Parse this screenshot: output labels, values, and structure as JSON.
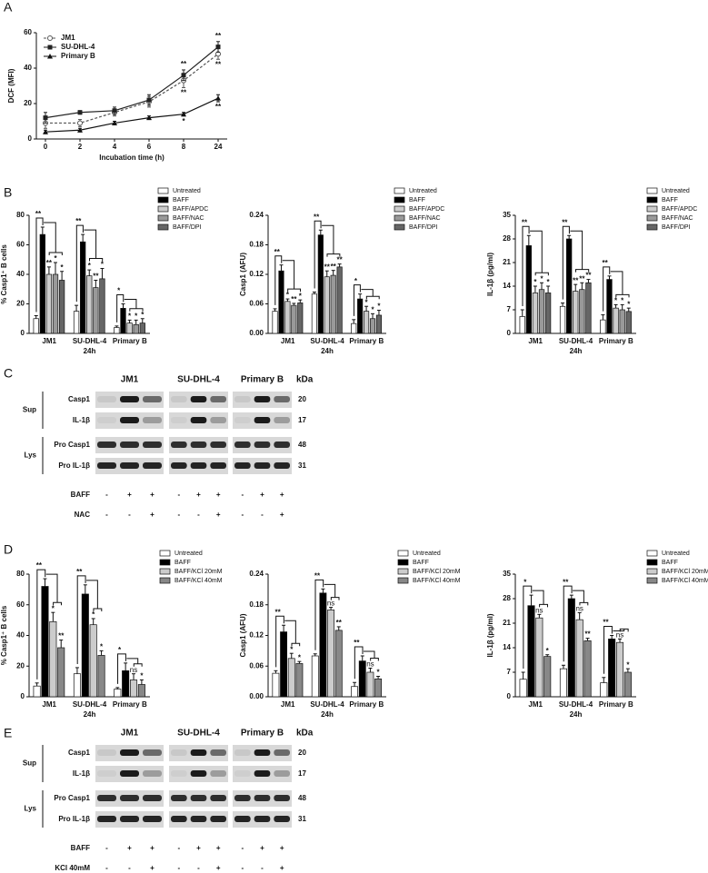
{
  "panel_labels": [
    "A",
    "B",
    "C",
    "D",
    "E"
  ],
  "chart_data": [
    {
      "type": "line",
      "xlabel": "Incubation time (h)",
      "ylabel": "DCF (MFI)",
      "categories": [
        "0",
        "2",
        "4",
        "6",
        "8",
        "24"
      ],
      "ylim": [
        0,
        60
      ],
      "yticks": [
        0,
        20,
        40,
        60
      ],
      "legend": "top-left",
      "series": [
        {
          "name": "JM1",
          "color": "#555555",
          "marker": "circle-open",
          "dash": true,
          "sig_position": "below",
          "values": [
            9,
            9,
            15,
            21,
            33,
            48
          ],
          "errors": [
            3,
            2,
            2,
            3,
            4,
            3
          ],
          "sig": [
            null,
            null,
            null,
            null,
            "**",
            "**"
          ]
        },
        {
          "name": "SU-DHL-4",
          "color": "#222222",
          "marker": "square",
          "dash": false,
          "sig_position": "above",
          "values": [
            12,
            15,
            16,
            22,
            36,
            52
          ],
          "errors": [
            3,
            1,
            2,
            3,
            3,
            3
          ],
          "sig": [
            null,
            null,
            null,
            null,
            "**",
            "**"
          ]
        },
        {
          "name": "Primary B",
          "color": "#111111",
          "marker": "triangle",
          "dash": false,
          "sig_position": "below",
          "values": [
            4,
            5,
            9,
            12,
            14,
            23
          ],
          "errors": [
            1,
            1,
            1,
            1,
            1,
            2
          ],
          "sig": [
            null,
            null,
            null,
            null,
            "*",
            "**"
          ]
        }
      ]
    },
    {
      "type": "bar",
      "ylabel": "% Casp1⁺ B cells",
      "xlabel": "24h",
      "categories": [
        "JM1",
        "SU-DHL-4",
        "Primary B"
      ],
      "ylim": [
        0,
        80
      ],
      "yticks": [
        0,
        20,
        40,
        60,
        80
      ],
      "bracket_labels": [
        "**",
        "**",
        "*"
      ],
      "series": [
        {
          "name": "Untreated",
          "color": "#ffffff",
          "values": [
            10,
            15,
            4
          ],
          "errors": [
            2,
            4,
            1
          ],
          "sig": [
            null,
            null,
            null
          ]
        },
        {
          "name": "BAFF",
          "color": "#000000",
          "values": [
            67,
            62,
            17
          ],
          "errors": [
            5,
            5,
            3
          ],
          "sig": [
            null,
            null,
            null
          ]
        },
        {
          "name": "BAFF/APDC",
          "color": "#cccccc",
          "values": [
            40,
            39,
            7
          ],
          "errors": [
            5,
            4,
            2
          ],
          "sig": [
            "**",
            "*",
            "*"
          ]
        },
        {
          "name": "BAFF/NAC",
          "color": "#999999",
          "values": [
            40,
            31,
            6
          ],
          "errors": [
            8,
            5,
            3
          ],
          "sig": [
            "*",
            "**",
            "*"
          ]
        },
        {
          "name": "BAFF/DPI",
          "color": "#666666",
          "values": [
            36,
            37,
            7
          ],
          "errors": [
            6,
            7,
            3
          ],
          "sig": [
            "*",
            "*",
            "*"
          ]
        }
      ]
    },
    {
      "type": "bar",
      "ylabel": "Casp1 (AFU)",
      "xlabel": "24h",
      "categories": [
        "JM1",
        "SU-DHL-4",
        "Primary B"
      ],
      "ylim": [
        0,
        0.24
      ],
      "yticks": [
        {
          "value": 0,
          "label": "0.00"
        },
        0.06,
        0.12,
        0.18,
        0.24
      ],
      "bracket_labels": [
        "**",
        "**",
        "*"
      ],
      "series": [
        {
          "name": "Untreated",
          "color": "#ffffff",
          "values": [
            0.045,
            0.08,
            0.02
          ],
          "errors": [
            0.005,
            0.004,
            0.008
          ],
          "sig": [
            null,
            null,
            null
          ]
        },
        {
          "name": "BAFF",
          "color": "#000000",
          "values": [
            0.127,
            0.2,
            0.07
          ],
          "errors": [
            0.012,
            0.01,
            0.01
          ],
          "sig": [
            null,
            null,
            null
          ]
        },
        {
          "name": "BAFF/APDC",
          "color": "#cccccc",
          "values": [
            0.065,
            0.115,
            0.045
          ],
          "errors": [
            0.005,
            0.012,
            0.01
          ],
          "sig": [
            "*",
            "**",
            "*"
          ]
        },
        {
          "name": "BAFF/NAC",
          "color": "#999999",
          "values": [
            0.057,
            0.118,
            0.03
          ],
          "errors": [
            0.004,
            0.01,
            0.01
          ],
          "sig": [
            "**",
            "**",
            "*"
          ]
        },
        {
          "name": "BAFF/DPI",
          "color": "#666666",
          "values": [
            0.062,
            0.135,
            0.037
          ],
          "errors": [
            0.006,
            0.006,
            0.01
          ],
          "sig": [
            "*",
            "**",
            "*"
          ]
        }
      ]
    },
    {
      "type": "bar",
      "ylabel": "IL-1β (pg/ml)",
      "xlabel": "24h",
      "categories": [
        "JM1",
        "SU-DHL-4",
        "Primary B"
      ],
      "ylim": [
        0,
        35
      ],
      "yticks": [
        0,
        7,
        14,
        21,
        28,
        35
      ],
      "bracket_labels": [
        "**",
        "**",
        "**"
      ],
      "series": [
        {
          "name": "Untreated",
          "color": "#ffffff",
          "values": [
            5,
            8,
            4
          ],
          "errors": [
            2,
            1,
            1.5
          ],
          "sig": [
            null,
            null,
            null
          ]
        },
        {
          "name": "BAFF",
          "color": "#000000",
          "values": [
            26,
            28,
            16
          ],
          "errors": [
            3,
            1,
            1
          ],
          "sig": [
            null,
            null,
            null
          ]
        },
        {
          "name": "BAFF/APDC",
          "color": "#cccccc",
          "values": [
            12,
            12.5,
            7.5
          ],
          "errors": [
            2,
            2,
            1
          ],
          "sig": [
            "*",
            "**",
            "*"
          ]
        },
        {
          "name": "BAFF/NAC",
          "color": "#999999",
          "values": [
            13,
            13,
            7
          ],
          "errors": [
            2,
            2,
            1.5
          ],
          "sig": [
            "*",
            "**",
            "*"
          ]
        },
        {
          "name": "BAFF/DPI",
          "color": "#666666",
          "values": [
            12,
            15,
            6.5
          ],
          "errors": [
            2,
            1,
            1
          ],
          "sig": [
            "*",
            "**",
            "*"
          ]
        }
      ]
    },
    {
      "type": "bar",
      "ylabel": "% Casp1⁺ B cells",
      "xlabel": "24h",
      "categories": [
        "JM1",
        "SU-DHL-4",
        "Primary B"
      ],
      "ylim": [
        0,
        80
      ],
      "yticks": [
        0,
        20,
        40,
        60,
        80
      ],
      "bracket_labels": [
        "**",
        "**",
        "*"
      ],
      "series": [
        {
          "name": "Untreated",
          "color": "#ffffff",
          "values": [
            7,
            15,
            5
          ],
          "errors": [
            2,
            4,
            1
          ],
          "sig": [
            null,
            null,
            null
          ]
        },
        {
          "name": "BAFF",
          "color": "#000000",
          "values": [
            72,
            67,
            17
          ],
          "errors": [
            5,
            6,
            5
          ],
          "sig": [
            null,
            null,
            null
          ]
        },
        {
          "name": "BAFF/KCl 20mM",
          "color": "#cccccc",
          "values": [
            49,
            47,
            11
          ],
          "errors": [
            6,
            4,
            4
          ],
          "sig": [
            "*",
            "*",
            "ns"
          ]
        },
        {
          "name": "BAFF/KCl 40mM",
          "color": "#888888",
          "values": [
            32,
            27,
            8
          ],
          "errors": [
            5,
            3,
            3
          ],
          "sig": [
            "**",
            "*",
            "*"
          ]
        }
      ]
    },
    {
      "type": "bar",
      "ylabel": "Casp1 (AFU)",
      "xlabel": "24h",
      "categories": [
        "JM1",
        "SU-DHL-4",
        "Primary B"
      ],
      "ylim": [
        0,
        0.24
      ],
      "yticks": [
        {
          "value": 0,
          "label": "0.00"
        },
        0.06,
        0.12,
        0.18,
        0.24
      ],
      "bracket_labels": [
        "**",
        "**",
        "**"
      ],
      "series": [
        {
          "name": "Untreated",
          "color": "#ffffff",
          "values": [
            0.046,
            0.08,
            0.02
          ],
          "errors": [
            0.005,
            0.004,
            0.008
          ],
          "sig": [
            null,
            null,
            null
          ]
        },
        {
          "name": "BAFF",
          "color": "#000000",
          "values": [
            0.127,
            0.203,
            0.07
          ],
          "errors": [
            0.013,
            0.008,
            0.01
          ],
          "sig": [
            null,
            null,
            null
          ]
        },
        {
          "name": "BAFF/KCl 20mM",
          "color": "#cccccc",
          "values": [
            0.075,
            0.17,
            0.048
          ],
          "errors": [
            0.01,
            0.005,
            0.008
          ],
          "sig": [
            "*",
            "ns",
            "ns"
          ]
        },
        {
          "name": "BAFF/KCl 40mM",
          "color": "#888888",
          "values": [
            0.065,
            0.13,
            0.035
          ],
          "errors": [
            0.004,
            0.007,
            0.005
          ],
          "sig": [
            "*",
            "**",
            "*"
          ]
        }
      ]
    },
    {
      "type": "bar",
      "ylabel": "IL-1β (pg/ml)",
      "xlabel": "24h",
      "categories": [
        "JM1",
        "SU-DHL-4",
        "Primary B"
      ],
      "ylim": [
        0,
        35
      ],
      "yticks": [
        0,
        7,
        14,
        21,
        28,
        35
      ],
      "bracket_labels": [
        "*",
        "**",
        "**"
      ],
      "series": [
        {
          "name": "Untreated",
          "color": "#ffffff",
          "values": [
            5,
            8,
            4
          ],
          "errors": [
            2,
            1,
            1.5
          ],
          "sig": [
            null,
            null,
            null
          ]
        },
        {
          "name": "BAFF",
          "color": "#000000",
          "values": [
            26,
            28,
            16.5
          ],
          "errors": [
            3,
            1,
            1
          ],
          "sig": [
            null,
            null,
            null
          ]
        },
        {
          "name": "BAFF/KCl 20mM",
          "color": "#cccccc",
          "values": [
            22.5,
            22,
            15.5
          ],
          "errors": [
            1,
            2,
            1
          ],
          "sig": [
            "ns",
            "ns",
            "ns"
          ]
        },
        {
          "name": "BAFF/KCl 40mM",
          "color": "#888888",
          "values": [
            11.5,
            16,
            7
          ],
          "errors": [
            0.5,
            0.7,
            1
          ],
          "sig": [
            "*",
            "**",
            "*"
          ]
        }
      ]
    }
  ],
  "blots": [
    {
      "columns": [
        "JM1",
        "SU-DHL-4",
        "Primary B"
      ],
      "kda_header": "kDa",
      "groups": [
        {
          "name": "Sup",
          "rows": [
            {
              "label": "Casp1",
              "kda": 20
            },
            {
              "label": "IL-1β",
              "kda": 17
            }
          ]
        },
        {
          "name": "Lys",
          "rows": [
            {
              "label": "Pro Casp1",
              "kda": 48
            },
            {
              "label": "Pro IL-1β",
              "kda": 31
            }
          ]
        }
      ],
      "treatments": [
        {
          "name": "BAFF",
          "signs": [
            "-",
            "+",
            "+",
            "-",
            "+",
            "+",
            "-",
            "+",
            "+"
          ]
        },
        {
          "name": "NAC",
          "signs": [
            "-",
            "-",
            "+",
            "-",
            "-",
            "+",
            "-",
            "-",
            "+"
          ]
        }
      ]
    },
    {
      "columns": [
        "JM1",
        "SU-DHL-4",
        "Primary B"
      ],
      "kda_header": "kDa",
      "groups": [
        {
          "name": "Sup",
          "rows": [
            {
              "label": "Casp1",
              "kda": 20
            },
            {
              "label": "IL-1β",
              "kda": 17
            }
          ]
        },
        {
          "name": "Lys",
          "rows": [
            {
              "label": "Pro Casp1",
              "kda": 48
            },
            {
              "label": "Pro IL-1β",
              "kda": 31
            }
          ]
        }
      ],
      "treatments": [
        {
          "name": "BAFF",
          "signs": [
            "-",
            "+",
            "+",
            "-",
            "+",
            "+",
            "-",
            "+",
            "+"
          ]
        },
        {
          "name": "KCl 40mM",
          "signs": [
            "-",
            "-",
            "+",
            "-",
            "-",
            "+",
            "-",
            "-",
            "+"
          ]
        }
      ]
    }
  ]
}
